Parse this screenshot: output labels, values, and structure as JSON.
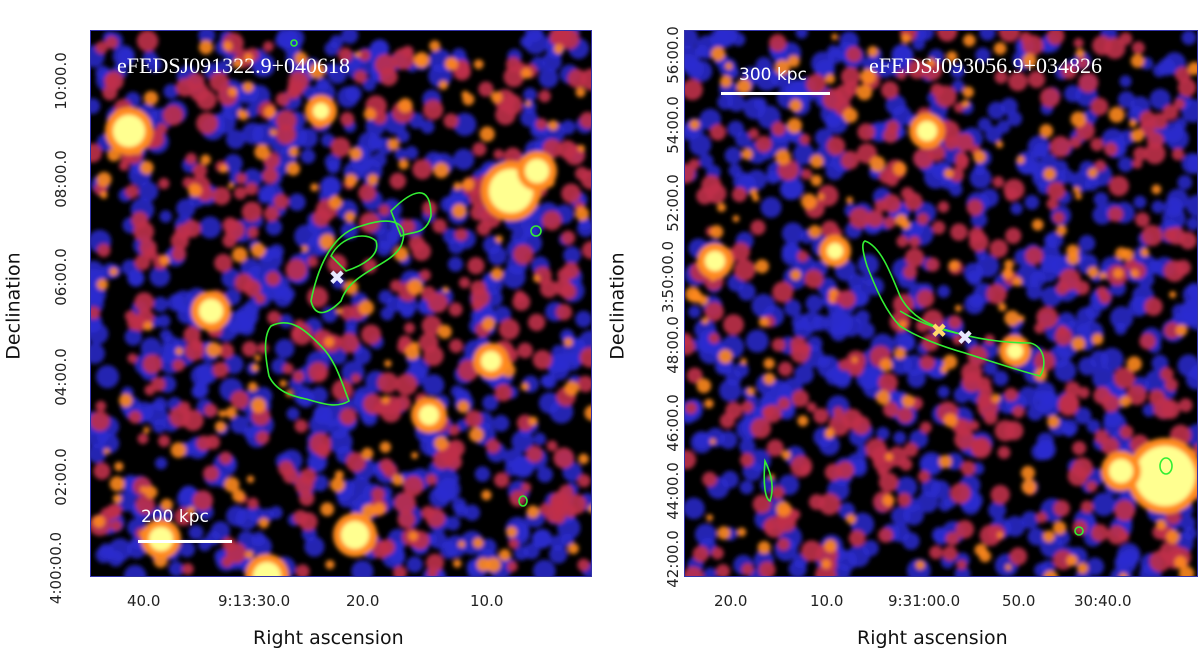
{
  "figure": {
    "panels": [
      {
        "name": "eFEDSJ091322.9+040618",
        "scalebar": "200 kpc",
        "xlabel": "Right ascension",
        "ylabel": "Declination",
        "xticks": [
          "40.0",
          "9:13:30.0",
          "20.0",
          "10.0"
        ],
        "yticks": [
          "4:00:00.0",
          "02:00.0",
          "04:00.0",
          "06:00.0",
          "08:00.0",
          "10:00.0"
        ]
      },
      {
        "name": "eFEDSJ093056.9+034826",
        "scalebar": "300 kpc",
        "xlabel": "Right ascension",
        "ylabel": "Declination",
        "xticks": [
          "20.0",
          "10.0",
          "9:31:00.0",
          "50.0",
          "30:40.0"
        ],
        "yticks": [
          "42:00.0",
          "44:00.0",
          "46:00.0",
          "48:00.0",
          "3:50:00.0",
          "52:00.0",
          "54:00.0",
          "56:00.0"
        ]
      }
    ]
  },
  "colors": {
    "background": "#000000",
    "low": "#2b2bd0",
    "mid": "#c0304a",
    "high": "#ff8a1e",
    "peak": "#ffff90",
    "contour": "#33ee33"
  }
}
